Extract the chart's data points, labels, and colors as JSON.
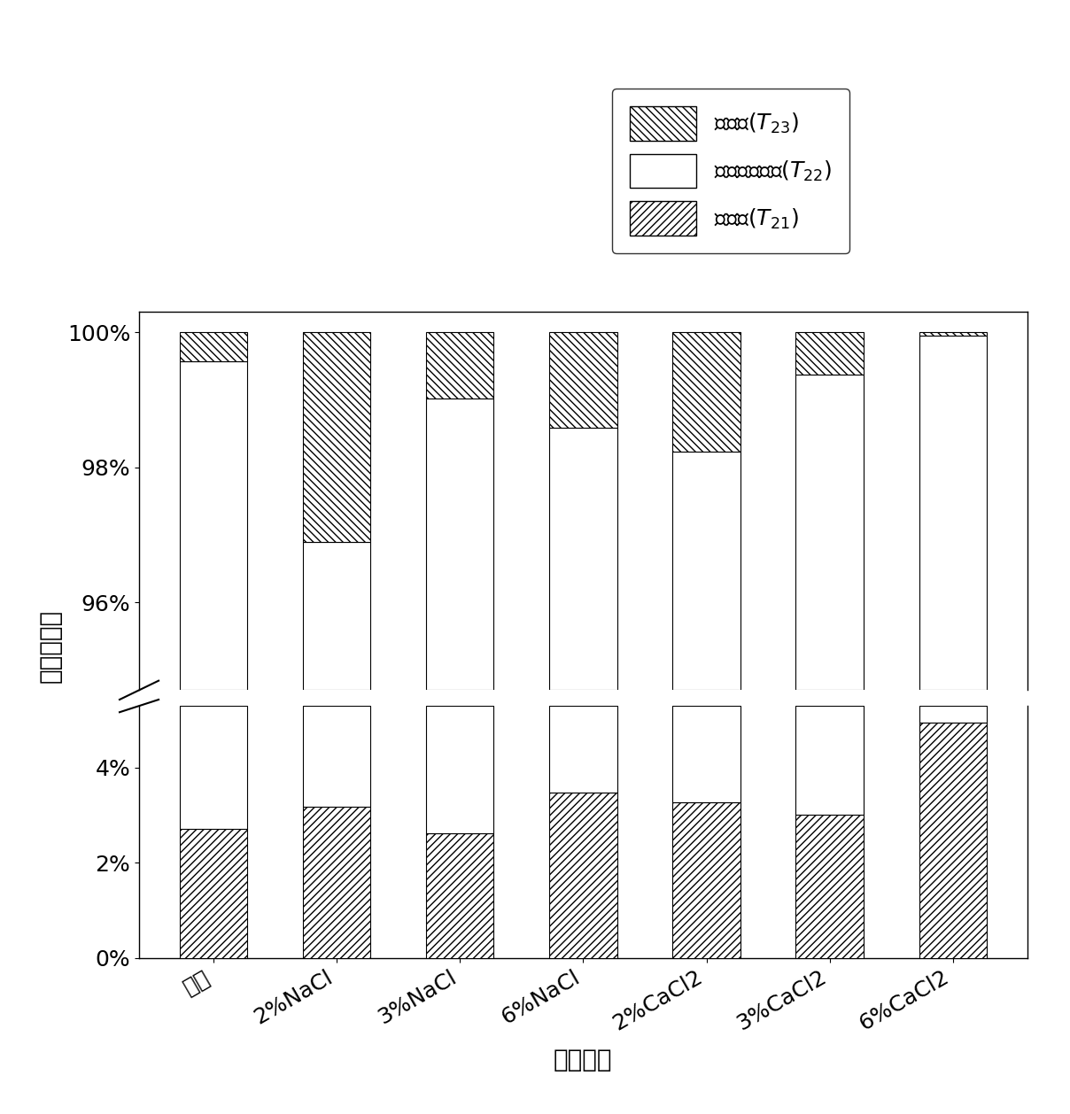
{
  "categories": [
    "清水",
    "2%NaCl",
    "3%NaCl",
    "6%NaCl",
    "2%CaCl2",
    "3%CaCl2",
    "6%CaCl2"
  ],
  "T21": [
    2.72,
    3.18,
    2.62,
    3.48,
    3.28,
    3.02,
    4.95
  ],
  "T23_pct": [
    0.43,
    3.1,
    0.98,
    1.42,
    1.77,
    0.63,
    0.05
  ],
  "xlabel": "解冻方式",
  "ylabel": "峰面积比例",
  "legend_T23": "流动水($T_{23}$)",
  "legend_T22": "不易流动水水($T_{22}$)",
  "legend_T21": "结合水($T_{21}$)",
  "label_fontsize": 20,
  "tick_fontsize": 18,
  "legend_fontsize": 18,
  "bar_width": 0.55,
  "lower_ylim": [
    0,
    5.3
  ],
  "upper_ylim": [
    94.7,
    100.3
  ],
  "lower_yticks": [
    0,
    2,
    4
  ],
  "upper_yticks": [
    96,
    98,
    100
  ],
  "lower_yticklabels": [
    "0%",
    "2%",
    "4%"
  ],
  "upper_yticklabels": [
    "96%",
    "98%",
    "100%"
  ]
}
